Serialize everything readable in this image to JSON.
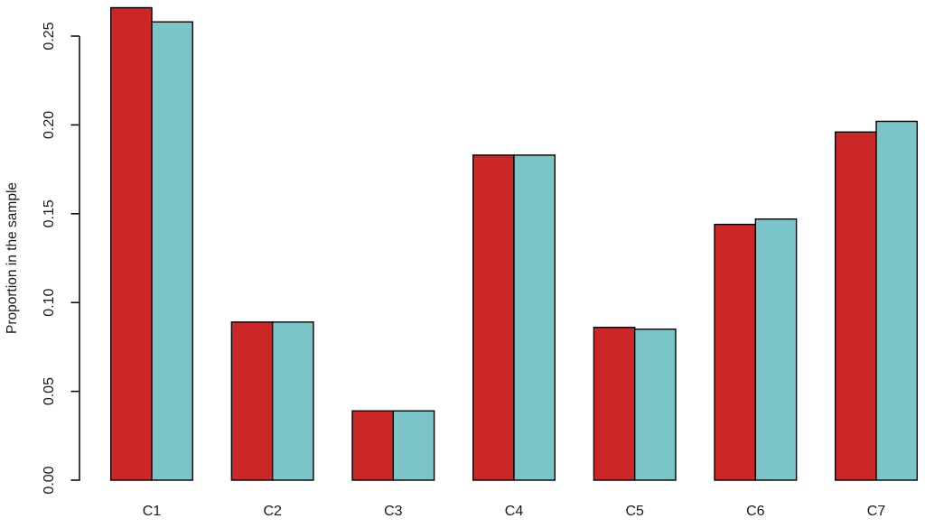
{
  "chart_data": {
    "type": "bar",
    "title": "",
    "categories": [
      "C1",
      "C2",
      "C3",
      "C4",
      "C5",
      "C6",
      "C7"
    ],
    "series": [
      {
        "name": "red-series",
        "color": "#CC2727",
        "values": [
          0.266,
          0.089,
          0.039,
          0.183,
          0.086,
          0.144,
          0.196
        ]
      },
      {
        "name": "teal-series",
        "color": "#7BC5C9",
        "values": [
          0.258,
          0.089,
          0.039,
          0.183,
          0.085,
          0.147,
          0.202
        ]
      }
    ],
    "xlabel": "",
    "ylabel": "Proportion in the sample",
    "ylim": [
      0,
      0.27
    ],
    "yticks": [
      0,
      0.05,
      0.1,
      0.15,
      0.2,
      0.25
    ],
    "ytick_labels": [
      "0.00",
      "0.05",
      "0.10",
      "0.15",
      "0.20",
      "0.25"
    ],
    "grid": false,
    "legend": "none",
    "bar_border_color": "#000000",
    "axis_color": "#000000",
    "text_color": "#1A1A1A",
    "background_color": "#FFFFFF"
  }
}
